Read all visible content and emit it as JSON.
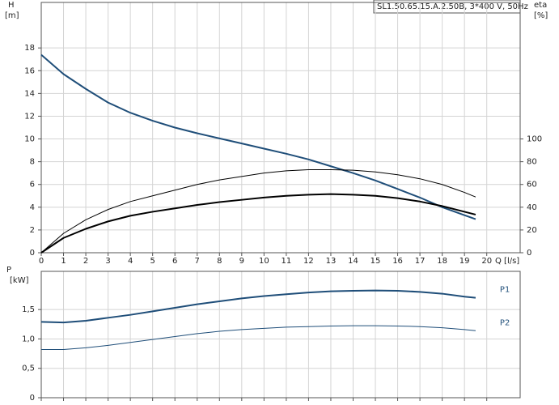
{
  "chart_data": [
    {
      "type": "line",
      "title": "SL1.50.65.15.A.2.50B, 3*400 V, 50Hz",
      "y_label": "H",
      "y_unit": "[m]",
      "y2_label": "eta",
      "y2_unit": "[%]",
      "x_label": "Q [l/s]",
      "x": [
        0,
        1,
        2,
        3,
        4,
        5,
        6,
        7,
        8,
        9,
        10,
        11,
        12,
        13,
        14,
        15,
        16,
        17,
        18,
        19,
        19.5
      ],
      "xlim": [
        0,
        21.5
      ],
      "xticks": [
        0,
        1,
        2,
        3,
        4,
        5,
        6,
        7,
        8,
        9,
        10,
        11,
        12,
        13,
        14,
        15,
        16,
        17,
        18,
        19,
        20
      ],
      "ylim": [
        0,
        22
      ],
      "yticks": [
        0,
        2,
        4,
        6,
        8,
        10,
        12,
        14,
        16,
        18
      ],
      "y2lim": [
        0,
        220
      ],
      "y2ticks": [
        0,
        20,
        40,
        60,
        80,
        100
      ],
      "grid": true,
      "series": [
        {
          "color": "#1f4e79",
          "line_width": 2,
          "values": [
            17.4,
            15.7,
            14.4,
            13.2,
            12.3,
            11.6,
            11.0,
            10.5,
            10.05,
            9.6,
            9.15,
            8.7,
            8.2,
            7.6,
            7.0,
            6.35,
            5.6,
            4.85,
            4.0,
            3.3,
            2.95
          ]
        },
        {
          "color": "#000000",
          "line_width": 1,
          "axis": "y2",
          "values": [
            0,
            17,
            29,
            38,
            45,
            50,
            55,
            60,
            64,
            67,
            70,
            72,
            73,
            73,
            72.5,
            71,
            68.5,
            65,
            60,
            53,
            49
          ]
        },
        {
          "color": "#000000",
          "line_width": 2,
          "axis": "y2",
          "values": [
            0,
            13,
            21,
            27.5,
            32.5,
            36,
            39,
            42,
            44.5,
            46.5,
            48.5,
            50,
            51,
            51.5,
            51,
            50,
            48,
            45,
            41,
            36,
            33.5
          ]
        }
      ]
    },
    {
      "type": "line",
      "y_label": "P",
      "y_unit": "[kW]",
      "x": [
        0,
        1,
        2,
        3,
        4,
        5,
        6,
        7,
        8,
        9,
        10,
        11,
        12,
        13,
        14,
        15,
        16,
        17,
        18,
        19,
        19.5
      ],
      "xlim": [
        0,
        21.5
      ],
      "ylim": [
        0,
        2.15
      ],
      "yticks": [
        0,
        {
          "value": 0.5,
          "label": "0,5"
        },
        {
          "value": 1.0,
          "label": "1,0"
        },
        {
          "value": 1.5,
          "label": "1,5"
        }
      ],
      "grid": true,
      "series": [
        {
          "name": "P1",
          "color": "#1f4e79",
          "line_width": 2,
          "values": [
            1.29,
            1.28,
            1.31,
            1.36,
            1.41,
            1.47,
            1.53,
            1.59,
            1.64,
            1.69,
            1.73,
            1.76,
            1.79,
            1.81,
            1.82,
            1.825,
            1.82,
            1.8,
            1.77,
            1.72,
            1.7
          ]
        },
        {
          "name": "P2",
          "color": "#1f4e79",
          "line_width": 1,
          "values": [
            0.82,
            0.82,
            0.85,
            0.89,
            0.94,
            0.99,
            1.04,
            1.09,
            1.13,
            1.16,
            1.18,
            1.2,
            1.21,
            1.22,
            1.225,
            1.225,
            1.22,
            1.21,
            1.19,
            1.16,
            1.14
          ]
        }
      ]
    }
  ]
}
